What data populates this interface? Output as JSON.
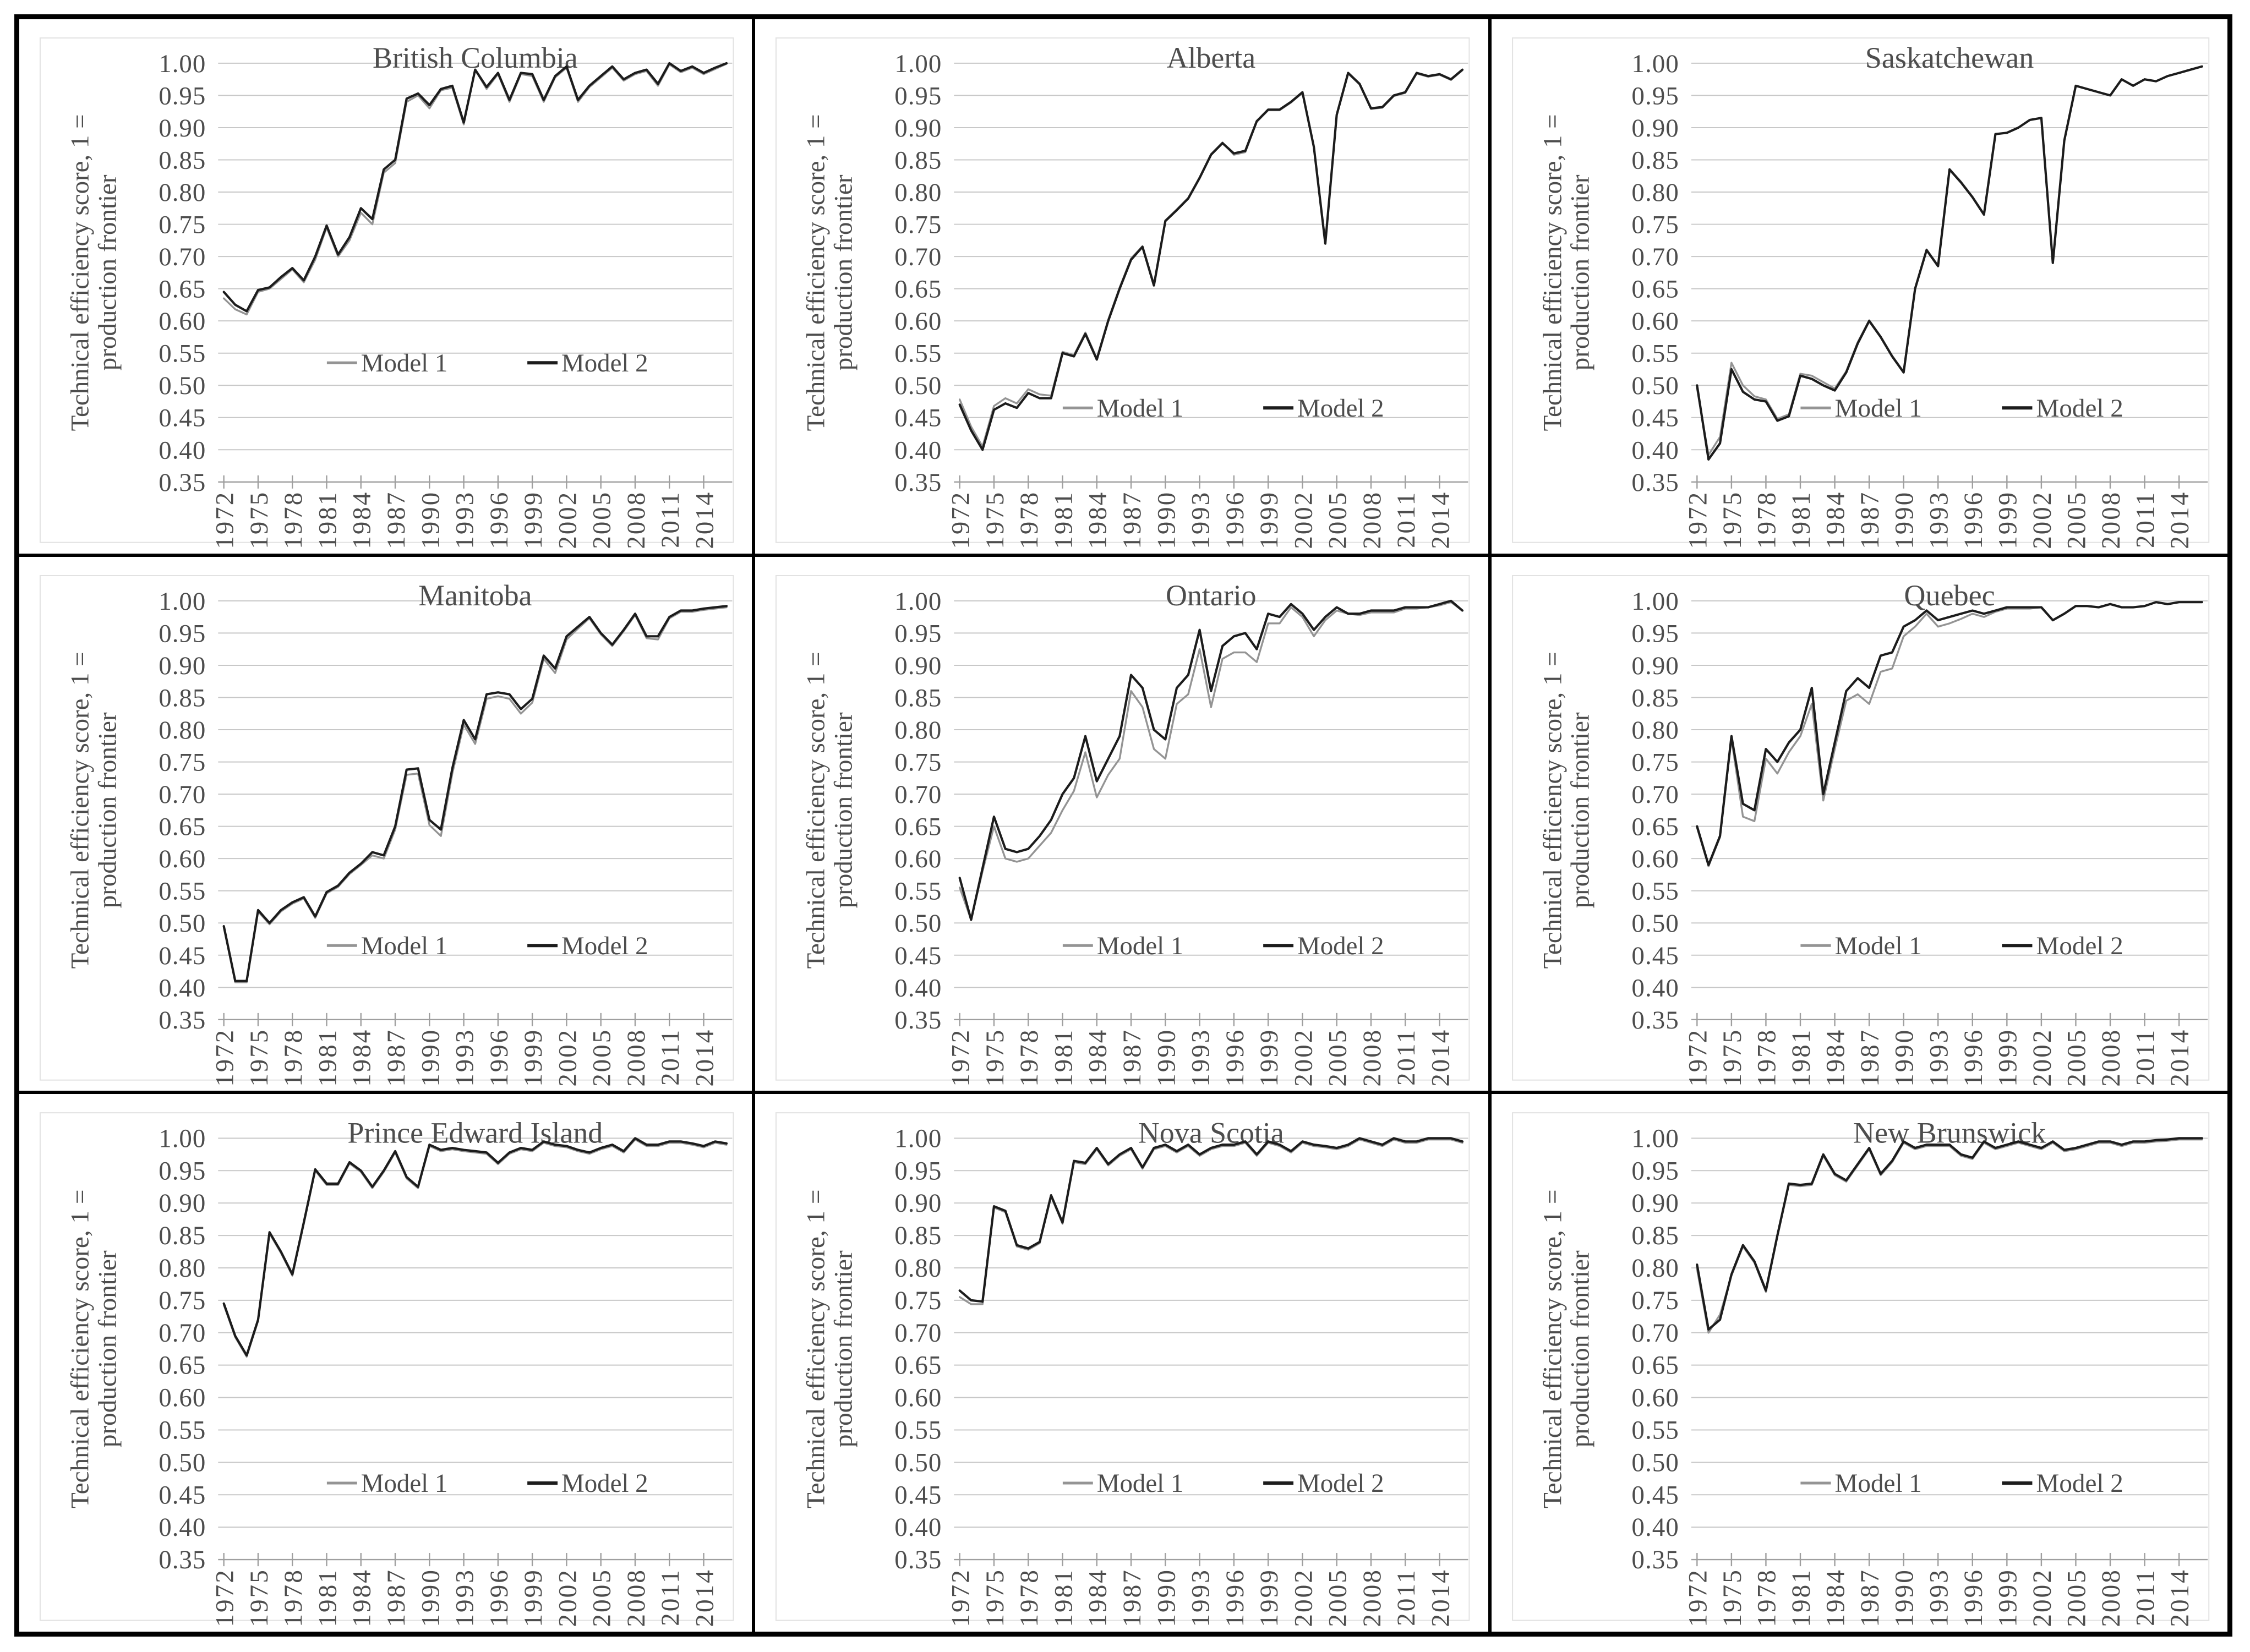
{
  "page": {
    "background": "#ffffff",
    "table_border_color": "#000000"
  },
  "colors": {
    "text": "#4d4d4d",
    "gridline": "#c8c8c8",
    "axis_line": "#9f9f9f",
    "plot_frame": "#e2e2e2",
    "model1_line": "#949494",
    "model2_line": "#1c1c1c"
  },
  "axis": {
    "ylabel_line1": "Technical efficiency score, 1 =",
    "ylabel_line2": "production frontier",
    "ylim": [
      0.35,
      1.0
    ],
    "y_tick_step": 0.05,
    "y_tick_labels": [
      "1.00",
      "0.95",
      "0.90",
      "0.85",
      "0.80",
      "0.75",
      "0.70",
      "0.65",
      "0.60",
      "0.55",
      "0.50",
      "0.45",
      "0.40",
      "0.35"
    ],
    "x_tick_years": [
      1972,
      1975,
      1978,
      1981,
      1984,
      1987,
      1990,
      1993,
      1996,
      1999,
      2002,
      2005,
      2008,
      2011,
      2014
    ],
    "x_years": [
      1972,
      1973,
      1974,
      1975,
      1976,
      1977,
      1978,
      1979,
      1980,
      1981,
      1982,
      1983,
      1984,
      1985,
      1986,
      1987,
      1988,
      1989,
      1990,
      1991,
      1992,
      1993,
      1994,
      1995,
      1996,
      1997,
      1998,
      1999,
      2000,
      2001,
      2002,
      2003,
      2004,
      2005,
      2006,
      2007,
      2008,
      2009,
      2010,
      2011,
      2012,
      2013,
      2014,
      2015,
      2016
    ],
    "grid": true
  },
  "legend": {
    "position": "inside-lower-middle",
    "items": [
      {
        "label": "Model 1",
        "color": "#949494"
      },
      {
        "label": "Model 2",
        "color": "#1c1c1c"
      }
    ]
  },
  "chart_data": [
    {
      "type": "line",
      "title": "British Columbia",
      "grid_position": [
        1,
        1
      ],
      "legend_y": 0.535,
      "series": [
        {
          "name": "Model 1",
          "values": [
            0.635,
            0.618,
            0.61,
            0.645,
            0.65,
            0.665,
            0.68,
            0.66,
            0.695,
            0.745,
            0.7,
            0.725,
            0.768,
            0.75,
            0.83,
            0.845,
            0.94,
            0.95,
            0.93,
            0.958,
            0.962,
            0.905,
            0.99,
            0.96,
            0.983,
            0.94,
            0.983,
            0.98,
            0.94,
            0.978,
            0.993,
            0.94,
            0.963,
            0.978,
            0.993,
            0.973,
            0.983,
            0.988,
            0.965,
            0.998,
            0.986,
            0.993,
            0.983,
            0.991,
            0.999
          ]
        },
        {
          "name": "Model 2",
          "values": [
            0.645,
            0.625,
            0.615,
            0.648,
            0.652,
            0.668,
            0.682,
            0.663,
            0.7,
            0.748,
            0.703,
            0.73,
            0.775,
            0.758,
            0.835,
            0.85,
            0.945,
            0.953,
            0.935,
            0.96,
            0.965,
            0.908,
            0.99,
            0.963,
            0.985,
            0.943,
            0.985,
            0.983,
            0.943,
            0.98,
            0.995,
            0.943,
            0.965,
            0.98,
            0.995,
            0.975,
            0.985,
            0.99,
            0.968,
            1.0,
            0.988,
            0.995,
            0.985,
            0.993,
            1.0
          ]
        }
      ]
    },
    {
      "type": "line",
      "title": "Alberta",
      "grid_position": [
        1,
        2
      ],
      "legend_y": 0.465,
      "series": [
        {
          "name": "Model 1",
          "values": [
            0.478,
            0.436,
            0.405,
            0.468,
            0.48,
            0.472,
            0.494,
            0.486,
            0.484,
            0.552,
            0.547,
            0.582,
            0.542,
            0.602,
            0.652,
            0.697,
            0.716,
            0.657,
            0.756,
            0.773,
            0.791,
            0.823,
            0.859,
            0.877,
            0.858,
            0.862,
            0.909,
            0.927,
            0.927,
            0.939,
            0.954,
            0.869,
            0.72,
            0.919,
            0.984,
            0.967,
            0.929,
            0.931,
            0.949,
            0.954,
            0.984,
            0.979,
            0.982,
            0.974,
            0.989
          ]
        },
        {
          "name": "Model 2",
          "values": [
            0.47,
            0.43,
            0.4,
            0.462,
            0.472,
            0.465,
            0.488,
            0.48,
            0.48,
            0.55,
            0.545,
            0.58,
            0.54,
            0.6,
            0.65,
            0.695,
            0.715,
            0.655,
            0.755,
            0.772,
            0.79,
            0.822,
            0.858,
            0.876,
            0.86,
            0.864,
            0.91,
            0.928,
            0.928,
            0.94,
            0.955,
            0.87,
            0.72,
            0.92,
            0.985,
            0.968,
            0.93,
            0.932,
            0.95,
            0.955,
            0.985,
            0.98,
            0.983,
            0.975,
            0.99
          ]
        }
      ]
    },
    {
      "type": "line",
      "title": "Saskatchewan",
      "grid_position": [
        1,
        3
      ],
      "legend_y": 0.465,
      "series": [
        {
          "name": "Model 1",
          "values": [
            0.495,
            0.392,
            0.42,
            0.535,
            0.5,
            0.483,
            0.478,
            0.448,
            0.455,
            0.518,
            0.515,
            0.505,
            0.495,
            0.522,
            0.567,
            0.601,
            0.576,
            0.546,
            0.521,
            0.651,
            0.711,
            0.686,
            0.836,
            0.816,
            0.793,
            0.766,
            0.89,
            0.892,
            0.9,
            0.912,
            0.915,
            0.69,
            0.88,
            0.965,
            0.96,
            0.955,
            0.95,
            0.975,
            0.965,
            0.975,
            0.972,
            0.98,
            0.985,
            0.99,
            0.995
          ]
        },
        {
          "name": "Model 2",
          "values": [
            0.5,
            0.385,
            0.41,
            0.525,
            0.49,
            0.478,
            0.475,
            0.445,
            0.452,
            0.515,
            0.51,
            0.5,
            0.492,
            0.52,
            0.565,
            0.6,
            0.575,
            0.545,
            0.52,
            0.65,
            0.71,
            0.685,
            0.835,
            0.815,
            0.792,
            0.765,
            0.89,
            0.892,
            0.9,
            0.912,
            0.915,
            0.69,
            0.88,
            0.965,
            0.96,
            0.955,
            0.95,
            0.975,
            0.965,
            0.975,
            0.972,
            0.98,
            0.985,
            0.99,
            0.995
          ]
        }
      ]
    },
    {
      "type": "line",
      "title": "Manitoba",
      "grid_position": [
        2,
        1
      ],
      "legend_y": 0.465,
      "series": [
        {
          "name": "Model 1",
          "values": [
            0.493,
            0.408,
            0.408,
            0.518,
            0.498,
            0.518,
            0.53,
            0.538,
            0.508,
            0.546,
            0.556,
            0.576,
            0.59,
            0.605,
            0.6,
            0.645,
            0.73,
            0.732,
            0.652,
            0.635,
            0.732,
            0.808,
            0.778,
            0.848,
            0.852,
            0.848,
            0.825,
            0.842,
            0.91,
            0.888,
            0.94,
            0.957,
            0.973,
            0.948,
            0.93,
            0.953,
            0.978,
            0.942,
            0.94,
            0.973,
            0.983,
            0.983,
            0.986,
            0.988,
            0.99
          ]
        },
        {
          "name": "Model 2",
          "values": [
            0.495,
            0.41,
            0.41,
            0.52,
            0.5,
            0.52,
            0.532,
            0.54,
            0.51,
            0.548,
            0.558,
            0.578,
            0.592,
            0.61,
            0.605,
            0.65,
            0.738,
            0.74,
            0.66,
            0.645,
            0.74,
            0.815,
            0.785,
            0.855,
            0.858,
            0.855,
            0.832,
            0.848,
            0.915,
            0.895,
            0.945,
            0.96,
            0.975,
            0.95,
            0.932,
            0.955,
            0.98,
            0.945,
            0.945,
            0.975,
            0.985,
            0.985,
            0.988,
            0.99,
            0.992
          ]
        }
      ]
    },
    {
      "type": "line",
      "title": "Ontario",
      "grid_position": [
        2,
        2
      ],
      "legend_y": 0.465,
      "series": [
        {
          "name": "Model 1",
          "values": [
            0.555,
            0.505,
            0.58,
            0.65,
            0.6,
            0.595,
            0.6,
            0.62,
            0.64,
            0.675,
            0.705,
            0.765,
            0.695,
            0.73,
            0.755,
            0.86,
            0.835,
            0.77,
            0.755,
            0.84,
            0.855,
            0.925,
            0.835,
            0.91,
            0.92,
            0.92,
            0.905,
            0.965,
            0.965,
            0.99,
            0.975,
            0.945,
            0.97,
            0.985,
            0.98,
            0.978,
            0.982,
            0.982,
            0.982,
            0.988,
            0.988,
            0.99,
            0.993,
            0.998,
            0.985
          ]
        },
        {
          "name": "Model 2",
          "values": [
            0.57,
            0.505,
            0.585,
            0.665,
            0.615,
            0.61,
            0.615,
            0.635,
            0.66,
            0.7,
            0.725,
            0.79,
            0.72,
            0.755,
            0.79,
            0.885,
            0.865,
            0.8,
            0.785,
            0.865,
            0.885,
            0.955,
            0.86,
            0.93,
            0.945,
            0.95,
            0.925,
            0.98,
            0.975,
            0.995,
            0.98,
            0.955,
            0.975,
            0.99,
            0.98,
            0.98,
            0.985,
            0.985,
            0.985,
            0.99,
            0.99,
            0.99,
            0.995,
            1.0,
            0.985
          ]
        }
      ]
    },
    {
      "type": "line",
      "title": "Quebec",
      "grid_position": [
        2,
        3
      ],
      "legend_y": 0.465,
      "series": [
        {
          "name": "Model 1",
          "values": [
            0.648,
            0.588,
            0.633,
            0.786,
            0.665,
            0.658,
            0.755,
            0.732,
            0.765,
            0.79,
            0.84,
            0.69,
            0.77,
            0.845,
            0.855,
            0.84,
            0.89,
            0.895,
            0.945,
            0.96,
            0.98,
            0.96,
            0.965,
            0.972,
            0.98,
            0.975,
            0.983,
            0.988,
            0.988,
            0.988,
            0.99,
            0.97,
            0.98,
            0.992,
            0.992,
            0.99,
            0.995,
            0.99,
            0.99,
            0.992,
            0.998,
            0.995,
            0.998,
            0.998,
            0.998
          ]
        },
        {
          "name": "Model 2",
          "values": [
            0.65,
            0.59,
            0.635,
            0.79,
            0.685,
            0.675,
            0.77,
            0.75,
            0.78,
            0.8,
            0.865,
            0.7,
            0.78,
            0.86,
            0.88,
            0.865,
            0.915,
            0.92,
            0.96,
            0.97,
            0.985,
            0.97,
            0.975,
            0.98,
            0.985,
            0.98,
            0.985,
            0.99,
            0.99,
            0.99,
            0.99,
            0.97,
            0.98,
            0.992,
            0.992,
            0.99,
            0.995,
            0.99,
            0.99,
            0.992,
            0.998,
            0.995,
            0.998,
            0.998,
            0.998
          ]
        }
      ]
    },
    {
      "type": "line",
      "title": "Prince Edward Island",
      "grid_position": [
        3,
        1
      ],
      "legend_y": 0.468,
      "series": [
        {
          "name": "Model 1",
          "values": [
            0.743,
            0.693,
            0.663,
            0.718,
            0.853,
            0.823,
            0.788,
            0.868,
            0.95,
            0.928,
            0.928,
            0.961,
            0.948,
            0.923,
            0.948,
            0.978,
            0.938,
            0.923,
            0.988,
            0.98,
            0.983,
            0.98,
            0.978,
            0.976,
            0.96,
            0.976,
            0.983,
            0.98,
            0.993,
            0.988,
            0.986,
            0.98,
            0.976,
            0.983,
            0.988,
            0.978,
            0.998,
            0.988,
            0.988,
            0.993,
            0.993,
            0.99,
            0.986,
            0.993,
            0.99
          ]
        },
        {
          "name": "Model 2",
          "values": [
            0.745,
            0.695,
            0.665,
            0.72,
            0.855,
            0.825,
            0.79,
            0.87,
            0.952,
            0.93,
            0.93,
            0.963,
            0.95,
            0.925,
            0.95,
            0.98,
            0.94,
            0.925,
            0.99,
            0.982,
            0.985,
            0.982,
            0.98,
            0.978,
            0.962,
            0.978,
            0.985,
            0.982,
            0.995,
            0.99,
            0.988,
            0.982,
            0.978,
            0.985,
            0.99,
            0.98,
            1.0,
            0.99,
            0.99,
            0.995,
            0.995,
            0.992,
            0.988,
            0.995,
            0.992
          ]
        }
      ]
    },
    {
      "type": "line",
      "title": "Nova Scotia",
      "grid_position": [
        3,
        2
      ],
      "legend_y": 0.468,
      "series": [
        {
          "name": "Model 1",
          "values": [
            0.755,
            0.744,
            0.744,
            0.893,
            0.886,
            0.833,
            0.828,
            0.838,
            0.91,
            0.868,
            0.963,
            0.96,
            0.983,
            0.958,
            0.973,
            0.983,
            0.953,
            0.983,
            0.988,
            0.978,
            0.988,
            0.973,
            0.983,
            0.988,
            0.988,
            0.993,
            0.973,
            0.993,
            0.988,
            0.978,
            0.993,
            0.988,
            0.986,
            0.983,
            0.988,
            0.998,
            0.993,
            0.988,
            0.998,
            0.993,
            0.993,
            0.998,
            0.998,
            0.998,
            0.993
          ]
        },
        {
          "name": "Model 2",
          "values": [
            0.765,
            0.75,
            0.748,
            0.895,
            0.888,
            0.835,
            0.83,
            0.84,
            0.912,
            0.87,
            0.965,
            0.962,
            0.985,
            0.96,
            0.975,
            0.985,
            0.955,
            0.985,
            0.99,
            0.98,
            0.99,
            0.975,
            0.985,
            0.99,
            0.99,
            0.995,
            0.975,
            0.995,
            0.99,
            0.98,
            0.995,
            0.99,
            0.988,
            0.985,
            0.99,
            1.0,
            0.995,
            0.99,
            1.0,
            0.995,
            0.995,
            1.0,
            1.0,
            1.0,
            0.995
          ]
        }
      ]
    },
    {
      "type": "line",
      "title": "New Brunswick",
      "grid_position": [
        3,
        3
      ],
      "legend_y": 0.468,
      "series": [
        {
          "name": "Model 1",
          "values": [
            0.798,
            0.7,
            0.728,
            0.788,
            0.833,
            0.808,
            0.763,
            0.848,
            0.928,
            0.926,
            0.928,
            0.973,
            0.943,
            0.933,
            0.958,
            0.983,
            0.943,
            0.963,
            0.993,
            0.983,
            0.988,
            0.988,
            0.988,
            0.973,
            0.968,
            0.993,
            0.983,
            0.988,
            0.993,
            0.988,
            0.983,
            0.993,
            0.98,
            0.983,
            0.988,
            0.993,
            0.993,
            0.988,
            0.993,
            0.993,
            0.995,
            0.996,
            0.998,
            0.998,
            0.998
          ]
        },
        {
          "name": "Model 2",
          "values": [
            0.805,
            0.705,
            0.72,
            0.79,
            0.835,
            0.81,
            0.765,
            0.85,
            0.93,
            0.928,
            0.93,
            0.975,
            0.945,
            0.935,
            0.96,
            0.985,
            0.945,
            0.965,
            0.995,
            0.985,
            0.99,
            0.99,
            0.99,
            0.975,
            0.97,
            0.995,
            0.985,
            0.99,
            0.995,
            0.99,
            0.985,
            0.995,
            0.982,
            0.985,
            0.99,
            0.995,
            0.995,
            0.99,
            0.995,
            0.995,
            0.997,
            0.998,
            1.0,
            1.0,
            1.0
          ]
        }
      ]
    }
  ]
}
